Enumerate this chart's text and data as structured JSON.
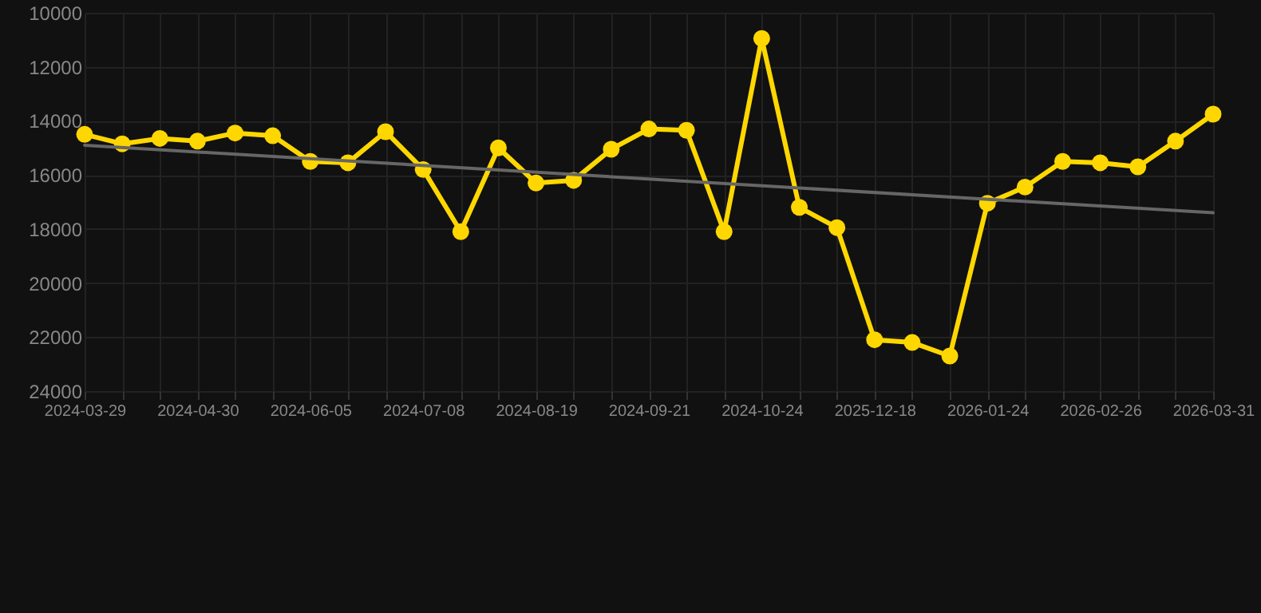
{
  "chart_data": {
    "type": "line",
    "categories": [
      "2024-03-29",
      null,
      null,
      "2024-04-30",
      null,
      null,
      "2024-06-05",
      null,
      null,
      "2024-07-08",
      null,
      null,
      "2024-08-19",
      null,
      null,
      "2024-09-21",
      null,
      null,
      "2024-10-24",
      null,
      null,
      "2025-12-18",
      null,
      null,
      "2026-01-24",
      null,
      null,
      "2026-02-26",
      null,
      null,
      "2026-03-31"
    ],
    "series": [
      {
        "color": "#ffd700",
        "marker": "circle",
        "values": [
          14500,
          14850,
          14650,
          14750,
          14450,
          14550,
          15500,
          15550,
          14400,
          15800,
          18100,
          15000,
          16300,
          16200,
          15050,
          14300,
          14350,
          18100,
          10950,
          17200,
          17950,
          22100,
          22200,
          22700,
          17050,
          16450,
          15500,
          15550,
          15700,
          14750,
          13750
        ]
      },
      {
        "type": "line",
        "color": "#666666",
        "values": [
          14900,
          null,
          null,
          null,
          null,
          null,
          null,
          null,
          null,
          null,
          null,
          null,
          null,
          null,
          null,
          null,
          null,
          null,
          null,
          null,
          null,
          null,
          null,
          null,
          null,
          null,
          null,
          null,
          null,
          null,
          17400
        ]
      }
    ],
    "ylim": [
      24000,
      10000
    ],
    "yticks": [
      10000,
      12000,
      14000,
      16000,
      18000,
      20000,
      22000,
      24000
    ],
    "grid": true
  }
}
